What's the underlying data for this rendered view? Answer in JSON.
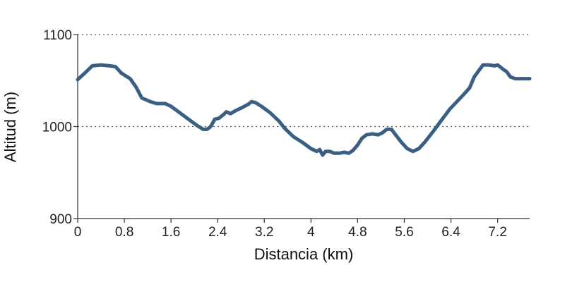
{
  "chart_data": {
    "type": "line",
    "title": "",
    "xlabel": "Distancia (km)",
    "ylabel": "Altitud (m)",
    "xlim": [
      0,
      7.75
    ],
    "ylim": [
      900,
      1100
    ],
    "x_ticks": [
      0,
      0.8,
      1.6,
      2.4,
      3.2,
      4,
      4.8,
      5.6,
      6.4,
      7.2
    ],
    "x_tick_labels": [
      "0",
      "0.8",
      "1.6",
      "2.4",
      "3.2",
      "4",
      "4.8",
      "5.6",
      "6.4",
      "7.2"
    ],
    "y_ticks": [
      900,
      1000,
      1100
    ],
    "y_tick_labels": [
      "900",
      "1000",
      "1100"
    ],
    "grid": "horizontal-dotted",
    "line_color": "#3a5f82",
    "series": [
      {
        "x": [
          0,
          0.12,
          0.25,
          0.4,
          0.55,
          0.65,
          0.75,
          0.9,
          1.0,
          1.1,
          1.25,
          1.35,
          1.5,
          1.6,
          1.75,
          1.9,
          2.05,
          2.15,
          2.22,
          2.28,
          2.35,
          2.42,
          2.5,
          2.55,
          2.62,
          2.7,
          2.8,
          2.92,
          2.98,
          3.05,
          3.15,
          3.3,
          3.45,
          3.55,
          3.7,
          3.85,
          4.0,
          4.1,
          4.15,
          4.2,
          4.25,
          4.32,
          4.4,
          4.48,
          4.57,
          4.65,
          4.72,
          4.8,
          4.87,
          4.95,
          5.05,
          5.15,
          5.22,
          5.3,
          5.38,
          5.45,
          5.55,
          5.65,
          5.75,
          5.85,
          5.95,
          6.1,
          6.25,
          6.38,
          6.5,
          6.62,
          6.72,
          6.8,
          6.88,
          6.95,
          7.05,
          7.15,
          7.2,
          7.3,
          7.35,
          7.42,
          7.5,
          7.6,
          7.7,
          7.75
        ],
        "y": [
          1051,
          1058,
          1066,
          1067,
          1066,
          1065,
          1058,
          1052,
          1043,
          1031,
          1027,
          1025,
          1025,
          1022,
          1015,
          1008,
          1001,
          997,
          997,
          1000,
          1008,
          1009,
          1013,
          1016,
          1014,
          1017,
          1020,
          1024,
          1027,
          1026,
          1022,
          1015,
          1006,
          998,
          989,
          983,
          976,
          973,
          975,
          969,
          973,
          973,
          971,
          971,
          972,
          971,
          974,
          980,
          987,
          991,
          992,
          991,
          993,
          997,
          997,
          991,
          983,
          976,
          973,
          976,
          983,
          995,
          1008,
          1019,
          1027,
          1035,
          1042,
          1054,
          1061,
          1067,
          1067,
          1066,
          1067,
          1062,
          1060,
          1054,
          1052,
          1052,
          1052,
          1052
        ]
      }
    ]
  }
}
